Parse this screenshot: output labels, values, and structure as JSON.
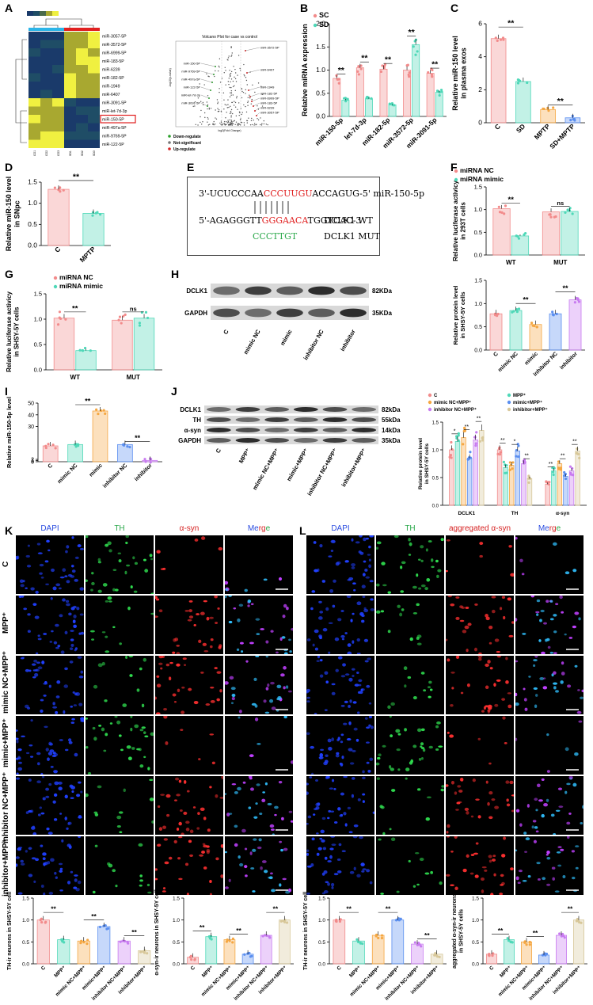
{
  "panels": {
    "A": "A",
    "B": "B",
    "C": "C",
    "D": "D",
    "E": "E",
    "F": "F",
    "G": "G",
    "H": "H",
    "I": "I",
    "J": "J",
    "K": "K",
    "L": "L"
  },
  "heatmap": {
    "rows": [
      "miR-3057-5P",
      "miR-3572-5P",
      "miR-6999-5P",
      "miR-183-5P",
      "miR-6239",
      "miR-182-5P",
      "miR-1949",
      "miR-6407",
      "miR-3091-5P",
      "miR-let-7d-3p",
      "miR-150-5P",
      "miR-497a-5P",
      "miR-9769-5P",
      "miR-122-5P"
    ],
    "highlight": "miR-150-5P",
    "cols": [
      "CO1",
      "CO2",
      "CO3",
      "SD1",
      "SD2",
      "SD3"
    ]
  },
  "volcano": {
    "title": "Volcano Plot for case vs control",
    "xlabel": "log2(Fold Change)",
    "ylabel": "-log10(p-value)",
    "labels_up": [
      "miR-3572-5P",
      "miR-6407",
      "miR-1949",
      "miR-182-5P",
      "miR-6999-5P",
      "miR-183-5P",
      "miR-6239",
      "miR-3057-5P"
    ],
    "labels_down": [
      "miR-150-5P",
      "miR-9769-5P",
      "miR-497a-5P",
      "miR-122-5P",
      "miR-let-7d-3p",
      "miR-3091-5P"
    ],
    "legend": [
      "Down-regulate",
      "Not-significant",
      "Up-regulate"
    ],
    "legend_colors": [
      "#2ca02c",
      "#777777",
      "#d62728"
    ]
  },
  "chart_data": [
    {
      "id": "B",
      "type": "bar",
      "ylabel": "Relative miRNA expression",
      "ylim": [
        0,
        2.0
      ],
      "yticks": [
        0.0,
        0.5,
        1.0,
        1.5,
        2.0
      ],
      "categories": [
        "miR-150-5p",
        "let-7d-3p",
        "miR-182-5p",
        "miR-3572-5p",
        "miR-3091-5p"
      ],
      "series": [
        {
          "name": "SC",
          "values": [
            0.82,
            1.05,
            1.02,
            1.0,
            0.93
          ],
          "color": "#f28b8b"
        },
        {
          "name": "SD",
          "values": [
            0.35,
            0.38,
            0.25,
            1.55,
            0.52
          ],
          "color": "#4fd8b8"
        }
      ],
      "sig": [
        "**",
        "**",
        "**",
        "**",
        "**"
      ]
    },
    {
      "id": "C",
      "type": "bar",
      "ylabel": "Relative miR-150 level in plasma exos",
      "ylim": [
        0,
        6
      ],
      "yticks": [
        0,
        2,
        4,
        6
      ],
      "categories": [
        "C",
        "SD",
        "MPTP",
        "SD+MPTP"
      ],
      "values": [
        5.1,
        2.5,
        0.8,
        0.3
      ],
      "colors": [
        "#f28b8b",
        "#4fd8b8",
        "#f5a742",
        "#5b8ff0"
      ],
      "sig": [
        "**",
        "**"
      ]
    },
    {
      "id": "D",
      "type": "bar",
      "ylabel": "Relative miR-150 level in SNpc",
      "ylim": [
        0,
        1.5
      ],
      "yticks": [
        0.0,
        0.5,
        1.0,
        1.5
      ],
      "categories": [
        "C",
        "MPTP"
      ],
      "values": [
        1.33,
        0.76
      ],
      "colors": [
        "#f28b8b",
        "#4fd8b8"
      ],
      "sig": [
        "**"
      ]
    },
    {
      "id": "F",
      "type": "bar",
      "ylabel": "Relative luciferase activicy in 293T cells",
      "ylim": [
        0,
        1.5
      ],
      "yticks": [
        0.0,
        0.5,
        1.0,
        1.5
      ],
      "categories": [
        "WT",
        "MUT"
      ],
      "series": [
        {
          "name": "miRNA NC",
          "values": [
            1.02,
            0.95
          ],
          "color": "#f28b8b"
        },
        {
          "name": "miRNA mimic",
          "values": [
            0.42,
            0.96
          ],
          "color": "#4fd8b8"
        }
      ],
      "sig": [
        "**",
        "ns"
      ]
    },
    {
      "id": "G",
      "type": "bar",
      "ylabel": "Relative luciferase activicy in SHSY-5Y cells",
      "ylim": [
        0,
        1.5
      ],
      "yticks": [
        0.0,
        0.5,
        1.0,
        1.5
      ],
      "categories": [
        "WT",
        "MUT"
      ],
      "series": [
        {
          "name": "miRNA NC",
          "values": [
            1.02,
            0.98
          ],
          "color": "#f28b8b"
        },
        {
          "name": "miRNA mimic",
          "values": [
            0.38,
            1.02
          ],
          "color": "#4fd8b8"
        }
      ],
      "sig": [
        "**",
        "ns"
      ]
    },
    {
      "id": "H2",
      "type": "bar",
      "ylabel": "Relative protein level in SHSY-5Y cells",
      "ylim": [
        0,
        1.5
      ],
      "yticks": [
        0.0,
        0.5,
        1.0,
        1.5
      ],
      "categories": [
        "C",
        "mimic NC",
        "mimic",
        "inhibitor NC",
        "inhibitor"
      ],
      "values": [
        0.78,
        0.85,
        0.55,
        0.78,
        1.08
      ],
      "colors": [
        "#f28b8b",
        "#4fd8b8",
        "#f5a742",
        "#5b8ff0",
        "#c87bf0"
      ],
      "sig": [
        "**",
        "**"
      ]
    },
    {
      "id": "I",
      "type": "bar",
      "ylabel": "Relative miR-150-5p level",
      "ylim": [
        0,
        50
      ],
      "yticks": [
        0,
        1,
        2,
        30,
        40,
        50
      ],
      "categories": [
        "C",
        "mimic NC",
        "mimic",
        "inhibitor NC",
        "inhibitor"
      ],
      "values": [
        1.2,
        1.3,
        44,
        1.3,
        0.1
      ],
      "colors": [
        "#f28b8b",
        "#4fd8b8",
        "#f5a742",
        "#5b8ff0",
        "#c87bf0"
      ],
      "sig": [
        "**",
        "**"
      ]
    },
    {
      "id": "J2",
      "type": "bar",
      "ylabel": "Relative protein level in SHSY-5Y cells",
      "ylim": [
        0,
        1.5
      ],
      "yticks": [
        0.0,
        0.5,
        1.0,
        1.5
      ],
      "categories": [
        "DCLK1",
        "TH",
        "α-syn"
      ],
      "series": [
        {
          "name": "C",
          "values": [
            1.0,
            1.0,
            0.38
          ],
          "color": "#f28b8b"
        },
        {
          "name": "MPP⁺",
          "values": [
            1.15,
            0.68,
            0.62
          ],
          "color": "#4fd8b8"
        },
        {
          "name": "mimic NC+MPP⁺",
          "values": [
            1.22,
            0.72,
            0.75
          ],
          "color": "#f5a742"
        },
        {
          "name": "mimic+MPP⁺",
          "values": [
            0.85,
            0.98,
            0.52
          ],
          "color": "#5b8ff0"
        },
        {
          "name": "inhibitor NC+MPP⁺",
          "values": [
            1.18,
            0.75,
            0.62
          ],
          "color": "#c87bf0"
        },
        {
          "name": "inhibitor+MPP⁺",
          "values": [
            1.35,
            0.48,
            0.98
          ],
          "color": "#d8c89a"
        }
      ],
      "sig": [
        "*",
        "**",
        "**",
        "**",
        "*",
        "**",
        "**",
        "**",
        "**"
      ]
    },
    {
      "id": "K1",
      "type": "bar",
      "ylabel": "TH-ir neurons in SHSY-5Y cell",
      "ylim": [
        0,
        1.5
      ],
      "yticks": [
        0.0,
        0.5,
        1.0,
        1.5
      ],
      "categories": [
        "C",
        "MPP⁺",
        "mimic NC+MPP⁺",
        "mimic+MPP⁺",
        "inhibitor NC+MPP⁺",
        "inhibitor+MPP⁺"
      ],
      "values": [
        1.0,
        0.55,
        0.52,
        0.85,
        0.52,
        0.3
      ],
      "colors": [
        "#f28b8b",
        "#4fd8b8",
        "#f5a742",
        "#5b8ff0",
        "#c87bf0",
        "#d8c89a"
      ],
      "sig": [
        "**",
        "**",
        "**"
      ]
    },
    {
      "id": "K2",
      "type": "bar",
      "ylabel": "α-syn-ir neurons in SHSY-5Y cells",
      "ylim": [
        0,
        1.5
      ],
      "yticks": [
        0.0,
        0.5,
        1.0,
        1.5
      ],
      "categories": [
        "C",
        "MPP⁺",
        "mimic NC+MPP⁺",
        "mimic+MPP⁺",
        "inhibitor NC+MPP⁺",
        "inhibitor+MPP⁺"
      ],
      "values": [
        0.15,
        0.62,
        0.55,
        0.22,
        0.65,
        1.0
      ],
      "colors": [
        "#f28b8b",
        "#4fd8b8",
        "#f5a742",
        "#5b8ff0",
        "#c87bf0",
        "#d8c89a"
      ],
      "sig": [
        "**",
        "**",
        "**"
      ]
    },
    {
      "id": "L1",
      "type": "bar",
      "ylabel": "TH-ir neurons in SHSY-5Y cell",
      "ylim": [
        0,
        1.5
      ],
      "yticks": [
        0.0,
        0.5,
        1.0,
        1.5
      ],
      "categories": [
        "C",
        "MPP⁺",
        "mimic NC+MPP⁺",
        "mimic+MPP⁺",
        "inhibitor NC+MPP⁺",
        "inhibitor+MPP⁺"
      ],
      "values": [
        1.0,
        0.52,
        0.65,
        1.0,
        0.45,
        0.22
      ],
      "colors": [
        "#f28b8b",
        "#4fd8b8",
        "#f5a742",
        "#5b8ff0",
        "#c87bf0",
        "#d8c89a"
      ],
      "sig": [
        "**",
        "**",
        "**"
      ]
    },
    {
      "id": "L2",
      "type": "bar",
      "ylabel": "aggregated α-syn-ir neurons in SHSY-5Y cells",
      "ylim": [
        0,
        1.5
      ],
      "yticks": [
        0.0,
        0.5,
        1.0,
        1.5
      ],
      "categories": [
        "C",
        "MPP⁺",
        "mimic NC+MPP⁺",
        "mimic+MPP⁺",
        "inhibitor NC+MPP⁺",
        "inhibitor+MPP⁺"
      ],
      "values": [
        0.22,
        0.55,
        0.5,
        0.2,
        0.65,
        1.0
      ],
      "colors": [
        "#f28b8b",
        "#4fd8b8",
        "#f5a742",
        "#5b8ff0",
        "#c87bf0",
        "#d8c89a"
      ],
      "sig": [
        "**",
        "**",
        "**"
      ]
    }
  ],
  "E": {
    "line1_pre": "3'-UCUCCCAA",
    "line1_red": "CCCUUGU",
    "line1_post": "ACCAGUG-5'  miR-150-5p",
    "line2_pre": "5'-AGAGGGTT",
    "line2_red": "GGGAACA",
    "line2_post": "TGGTCAC-3'",
    "line3_green": "CCCTTGT",
    "wt": "DCLK1 WT",
    "mut": "DCLK1 MUT"
  },
  "H": {
    "bands": [
      "DCLK1",
      "GAPDH"
    ],
    "kda": [
      "82KDa",
      "35KDa"
    ],
    "lanes": [
      "C",
      "mimic NC",
      "mimic",
      "inhibitor NC",
      "inhibitor"
    ]
  },
  "J": {
    "bands": [
      "DCLK1",
      "TH",
      "α-syn",
      "GAPDH"
    ],
    "kda": [
      "82kDa",
      "55kDa",
      "14kDa",
      "35kDa"
    ],
    "lanes": [
      "C",
      "MPP⁺",
      "mimic NC+MPP⁺",
      "mimic+MPP⁺",
      "inhibitor NC+MPP⁺",
      "inhibitor+MPP⁺"
    ]
  },
  "K": {
    "cols": [
      "DAPI",
      "TH",
      "α-syn",
      "Merge"
    ],
    "col_colors": [
      "#2b4ce0",
      "#2aa84a",
      "#d62020",
      "#2b4ce0"
    ],
    "rows": [
      "C",
      "MPP⁺",
      "mimic NC+MPP⁺",
      "mimic+MPP⁺",
      "inhibitor NC+MPP⁺",
      "inhibitor+MPP⁺"
    ]
  },
  "L": {
    "cols": [
      "DAPI",
      "TH",
      "aggregated α-syn",
      "Merge"
    ],
    "col_colors": [
      "#2b4ce0",
      "#2aa84a",
      "#d62020",
      "#2b4ce0"
    ]
  }
}
